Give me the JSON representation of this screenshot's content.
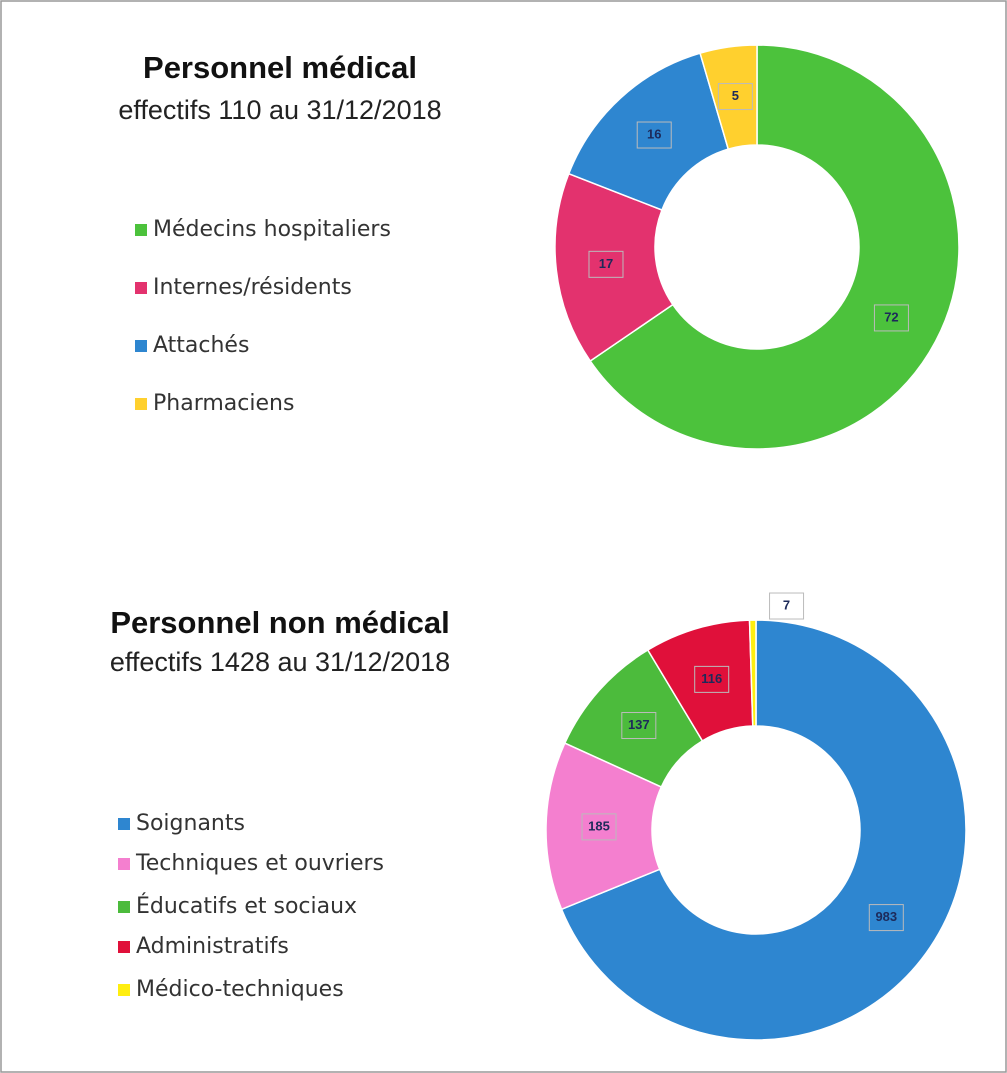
{
  "chart_data": [
    {
      "type": "donut",
      "title": "Personnel médical",
      "subtitle": "effectifs 110 au 31/12/2018",
      "categories": [
        "Médecins hospitaliers",
        "Internes/résidents",
        "Attachés",
        "Pharmaciens"
      ],
      "values": [
        72,
        17,
        16,
        5
      ],
      "colors": [
        "#4cc23c",
        "#e3326e",
        "#2e86d0",
        "#ffd02e"
      ]
    },
    {
      "type": "donut",
      "title": "Personnel non médical",
      "subtitle": "effectifs 1428 au 31/12/2018",
      "categories": [
        "Soignants",
        "Techniques et ouvriers",
        "Éducatifs et sociaux",
        "Administratifs",
        "Médico-techniques"
      ],
      "values": [
        983,
        185,
        137,
        116,
        7
      ],
      "colors": [
        "#2e86d0",
        "#f47fcf",
        "#4cbb3c",
        "#e0103a",
        "#ffee10"
      ]
    }
  ]
}
